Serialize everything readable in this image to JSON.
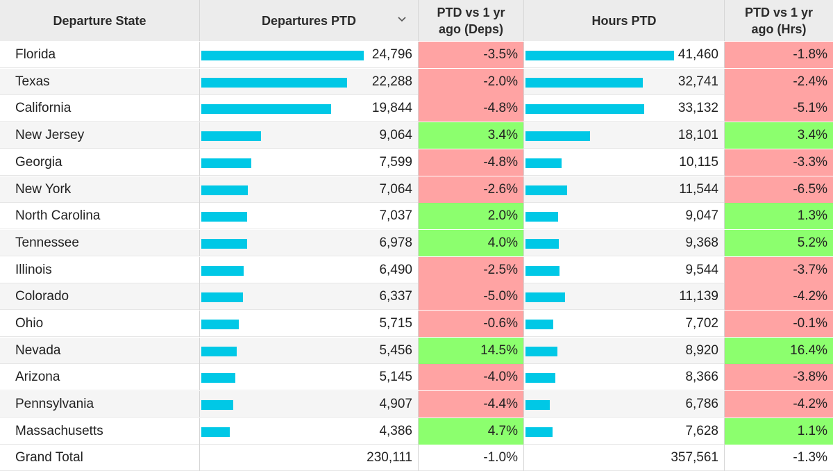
{
  "chart_data": {
    "type": "table",
    "columns": [
      "Departure State",
      "Departures PTD",
      "PTD vs 1 yr ago (Deps)",
      "Hours PTD",
      "PTD vs 1 yr ago (Hrs)"
    ],
    "header": {
      "state": "Departure State",
      "departures": "Departures PTD",
      "dep_change_line1": "PTD vs 1 yr",
      "dep_change_line2": "ago (Deps)",
      "hours": "Hours PTD",
      "hrs_change_line1": "PTD vs 1 yr",
      "hrs_change_line2": "ago (Hrs)"
    },
    "sort_indicator_icon": "chevron-down-icon",
    "bar_color": "#00c8e6",
    "negative_color": "#ffa3a3",
    "positive_color": "#8cff6e",
    "rows": [
      {
        "state": "Florida",
        "departures": 24796,
        "departures_text": "24,796",
        "dep_change": -3.5,
        "dep_change_text": "-3.5%",
        "hours": 41460,
        "hours_text": "41,460",
        "hrs_change": -1.8,
        "hrs_change_text": "-1.8%"
      },
      {
        "state": "Texas",
        "departures": 22288,
        "departures_text": "22,288",
        "dep_change": -2.0,
        "dep_change_text": "-2.0%",
        "hours": 32741,
        "hours_text": "32,741",
        "hrs_change": -2.4,
        "hrs_change_text": "-2.4%"
      },
      {
        "state": "California",
        "departures": 19844,
        "departures_text": "19,844",
        "dep_change": -4.8,
        "dep_change_text": "-4.8%",
        "hours": 33132,
        "hours_text": "33,132",
        "hrs_change": -5.1,
        "hrs_change_text": "-5.1%"
      },
      {
        "state": "New Jersey",
        "departures": 9064,
        "departures_text": "9,064",
        "dep_change": 3.4,
        "dep_change_text": "3.4%",
        "hours": 18101,
        "hours_text": "18,101",
        "hrs_change": 3.4,
        "hrs_change_text": "3.4%"
      },
      {
        "state": "Georgia",
        "departures": 7599,
        "departures_text": "7,599",
        "dep_change": -4.8,
        "dep_change_text": "-4.8%",
        "hours": 10115,
        "hours_text": "10,115",
        "hrs_change": -3.3,
        "hrs_change_text": "-3.3%"
      },
      {
        "state": "New York",
        "departures": 7064,
        "departures_text": "7,064",
        "dep_change": -2.6,
        "dep_change_text": "-2.6%",
        "hours": 11544,
        "hours_text": "11,544",
        "hrs_change": -6.5,
        "hrs_change_text": "-6.5%"
      },
      {
        "state": "North Carolina",
        "departures": 7037,
        "departures_text": "7,037",
        "dep_change": 2.0,
        "dep_change_text": "2.0%",
        "hours": 9047,
        "hours_text": "9,047",
        "hrs_change": 1.3,
        "hrs_change_text": "1.3%"
      },
      {
        "state": "Tennessee",
        "departures": 6978,
        "departures_text": "6,978",
        "dep_change": 4.0,
        "dep_change_text": "4.0%",
        "hours": 9368,
        "hours_text": "9,368",
        "hrs_change": 5.2,
        "hrs_change_text": "5.2%"
      },
      {
        "state": "Illinois",
        "departures": 6490,
        "departures_text": "6,490",
        "dep_change": -2.5,
        "dep_change_text": "-2.5%",
        "hours": 9544,
        "hours_text": "9,544",
        "hrs_change": -3.7,
        "hrs_change_text": "-3.7%"
      },
      {
        "state": "Colorado",
        "departures": 6337,
        "departures_text": "6,337",
        "dep_change": -5.0,
        "dep_change_text": "-5.0%",
        "hours": 11139,
        "hours_text": "11,139",
        "hrs_change": -4.2,
        "hrs_change_text": "-4.2%"
      },
      {
        "state": "Ohio",
        "departures": 5715,
        "departures_text": "5,715",
        "dep_change": -0.6,
        "dep_change_text": "-0.6%",
        "hours": 7702,
        "hours_text": "7,702",
        "hrs_change": -0.1,
        "hrs_change_text": "-0.1%"
      },
      {
        "state": "Nevada",
        "departures": 5456,
        "departures_text": "5,456",
        "dep_change": 14.5,
        "dep_change_text": "14.5%",
        "hours": 8920,
        "hours_text": "8,920",
        "hrs_change": 16.4,
        "hrs_change_text": "16.4%"
      },
      {
        "state": "Arizona",
        "departures": 5145,
        "departures_text": "5,145",
        "dep_change": -4.0,
        "dep_change_text": "-4.0%",
        "hours": 8366,
        "hours_text": "8,366",
        "hrs_change": -3.8,
        "hrs_change_text": "-3.8%"
      },
      {
        "state": "Pennsylvania",
        "departures": 4907,
        "departures_text": "4,907",
        "dep_change": -4.4,
        "dep_change_text": "-4.4%",
        "hours": 6786,
        "hours_text": "6,786",
        "hrs_change": -4.2,
        "hrs_change_text": "-4.2%"
      },
      {
        "state": "Massachusetts",
        "departures": 4386,
        "departures_text": "4,386",
        "dep_change": 4.7,
        "dep_change_text": "4.7%",
        "hours": 7628,
        "hours_text": "7,628",
        "hrs_change": 1.1,
        "hrs_change_text": "1.1%"
      }
    ],
    "total": {
      "label": "Grand Total",
      "departures_text": "230,111",
      "dep_change_text": "-1.0%",
      "hours_text": "357,561",
      "hrs_change_text": "-1.3%"
    }
  }
}
